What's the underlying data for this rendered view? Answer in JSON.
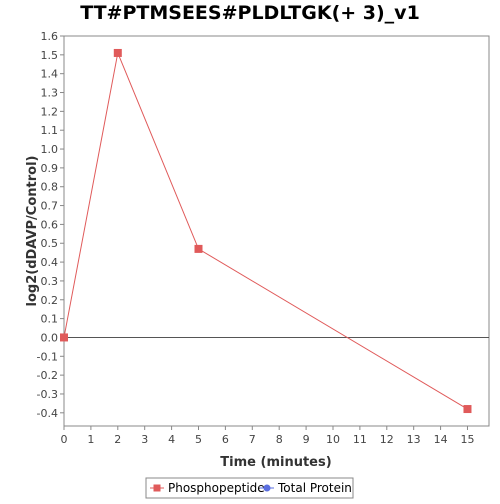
{
  "chart_data": {
    "type": "line",
    "title": "TT#PTMSEES#PLDLTGK(+ 3)_v1",
    "xlabel": "Time (minutes)",
    "ylabel": "log2(dDAVP/Control)",
    "xlim": [
      0,
      15.8
    ],
    "ylim": [
      -0.47,
      1.6
    ],
    "x_ticks": [
      0,
      1,
      2,
      3,
      4,
      5,
      6,
      7,
      8,
      9,
      10,
      11,
      12,
      13,
      14,
      15
    ],
    "x_tick_labels": [
      "0",
      "1",
      "2",
      "3",
      "4",
      "5",
      "6",
      "7",
      "8",
      "9",
      "10",
      "11",
      "12",
      "13",
      "14",
      "15"
    ],
    "y_ticks": [
      1.6,
      1.5,
      1.4,
      1.3,
      1.2,
      1.1,
      1.0,
      0.9,
      0.8,
      0.7,
      0.6,
      0.5,
      0.4,
      0.3,
      0.2,
      0.1,
      0.0,
      -0.1,
      -0.2,
      -0.3,
      -0.4
    ],
    "y_tick_labels": [
      "1.6",
      "1.5",
      "1.4",
      "1.3",
      "1.2",
      "1.1",
      "1.0",
      "0.9",
      "0.8",
      "0.7",
      "0.6",
      "0.5",
      "0.4",
      "0.3",
      "0.2",
      "0.1",
      "0.0",
      "-0.1",
      "-0.2",
      "-0.3",
      "-0.4"
    ],
    "grid": false,
    "zero_line": true,
    "legend_position": "bottom",
    "series": [
      {
        "name": "Phosphopeptide",
        "color": "#e05a5a",
        "marker": "square",
        "x": [
          0,
          2,
          5,
          15
        ],
        "y": [
          0.0,
          1.51,
          0.47,
          -0.38
        ]
      },
      {
        "name": "Total Protein",
        "color": "#5a6ee0",
        "marker": "circle",
        "x": [],
        "y": []
      }
    ]
  }
}
